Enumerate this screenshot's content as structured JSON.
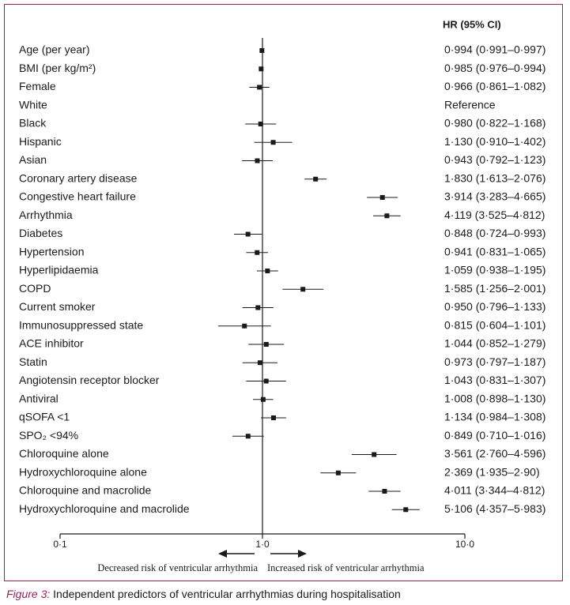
{
  "chart_data": {
    "type": "forest",
    "header": "HR (95% CI)",
    "x_scale": "log",
    "xlim": [
      0.1,
      10.0
    ],
    "reference_line": 1.0,
    "x_ticks": [
      {
        "value": 0.1,
        "label": "0·1"
      },
      {
        "value": 1.0,
        "label": "1·0"
      },
      {
        "value": 10.0,
        "label": "10·0"
      }
    ],
    "direction_left": "Decreased risk of ventricular arrhythmia",
    "direction_right": "Increased risk of ventricular arrhythmia",
    "rows": [
      {
        "label": "Age (per year)",
        "hr": 0.994,
        "lo": 0.991,
        "hi": 0.997,
        "text": "0·994 (0·991–0·997)"
      },
      {
        "label": "BMI (per kg/m²)",
        "hr": 0.985,
        "lo": 0.976,
        "hi": 0.994,
        "text": "0·985 (0·976–0·994)"
      },
      {
        "label": "Female",
        "hr": 0.966,
        "lo": 0.861,
        "hi": 1.082,
        "text": "0·966 (0·861–1·082)"
      },
      {
        "label": "White",
        "hr": null,
        "lo": null,
        "hi": null,
        "text": "Reference"
      },
      {
        "label": "Black",
        "hr": 0.98,
        "lo": 0.822,
        "hi": 1.168,
        "text": "0·980 (0·822–1·168)"
      },
      {
        "label": "Hispanic",
        "hr": 1.13,
        "lo": 0.91,
        "hi": 1.402,
        "text": "1·130 (0·910–1·402)"
      },
      {
        "label": "Asian",
        "hr": 0.943,
        "lo": 0.792,
        "hi": 1.123,
        "text": "0·943 (0·792–1·123)"
      },
      {
        "label": "Coronary artery disease",
        "hr": 1.83,
        "lo": 1.613,
        "hi": 2.076,
        "text": "1·830 (1·613–2·076)"
      },
      {
        "label": "Congestive heart failure",
        "hr": 3.914,
        "lo": 3.283,
        "hi": 4.665,
        "text": "3·914 (3·283–4·665)"
      },
      {
        "label": "Arrhythmia",
        "hr": 4.119,
        "lo": 3.525,
        "hi": 4.812,
        "text": "4·119 (3·525–4·812)"
      },
      {
        "label": "Diabetes",
        "hr": 0.848,
        "lo": 0.724,
        "hi": 0.993,
        "text": "0·848 (0·724–0·993)"
      },
      {
        "label": "Hypertension",
        "hr": 0.941,
        "lo": 0.831,
        "hi": 1.065,
        "text": "0·941 (0·831–1·065)"
      },
      {
        "label": "Hyperlipidaemia",
        "hr": 1.059,
        "lo": 0.938,
        "hi": 1.195,
        "text": "1·059 (0·938–1·195)"
      },
      {
        "label": "COPD",
        "hr": 1.585,
        "lo": 1.256,
        "hi": 2.001,
        "text": "1·585 (1·256–2·001)"
      },
      {
        "label": "Current smoker",
        "hr": 0.95,
        "lo": 0.796,
        "hi": 1.133,
        "text": "0·950 (0·796–1·133)"
      },
      {
        "label": "Immunosuppressed state",
        "hr": 0.815,
        "lo": 0.604,
        "hi": 1.101,
        "text": "0·815 (0·604–1·101)"
      },
      {
        "label": "ACE inhibitor",
        "hr": 1.044,
        "lo": 0.852,
        "hi": 1.279,
        "text": "1·044 (0·852–1·279)"
      },
      {
        "label": "Statin",
        "hr": 0.973,
        "lo": 0.797,
        "hi": 1.187,
        "text": "0·973 (0·797–1·187)"
      },
      {
        "label": "Angiotensin receptor blocker",
        "hr": 1.043,
        "lo": 0.831,
        "hi": 1.307,
        "text": "1·043 (0·831–1·307)"
      },
      {
        "label": "Antiviral",
        "hr": 1.008,
        "lo": 0.898,
        "hi": 1.13,
        "text": "1·008 (0·898–1·130)"
      },
      {
        "label": "qSOFA <1",
        "hr": 1.134,
        "lo": 0.984,
        "hi": 1.308,
        "text": "1·134 (0·984–1·308)"
      },
      {
        "label": "SPO₂ <94%",
        "hr": 0.849,
        "lo": 0.71,
        "hi": 1.016,
        "text": "0·849 (0·710–1·016)"
      },
      {
        "label": "Chloroquine alone",
        "hr": 3.561,
        "lo": 2.76,
        "hi": 4.596,
        "text": "3·561 (2·760–4·596)"
      },
      {
        "label": "Hydroxychloroquine alone",
        "hr": 2.369,
        "lo": 1.935,
        "hi": 2.9,
        "text": "2·369 (1·935–2·90)"
      },
      {
        "label": "Chloroquine and macrolide",
        "hr": 4.011,
        "lo": 3.344,
        "hi": 4.812,
        "text": "4·011 (3·344–4·812)"
      },
      {
        "label": "Hydroxychloroquine and macrolide",
        "hr": 5.106,
        "lo": 4.357,
        "hi": 5.983,
        "text": "5·106 (4·357–5·983)"
      }
    ],
    "colors": {
      "marks": "#1a1a1a",
      "frame": "#9c1f5e"
    }
  },
  "caption": {
    "figure_label": "Figure 3:",
    "text": " Independent predictors of ventricular arrhythmias during hospitalisation"
  }
}
